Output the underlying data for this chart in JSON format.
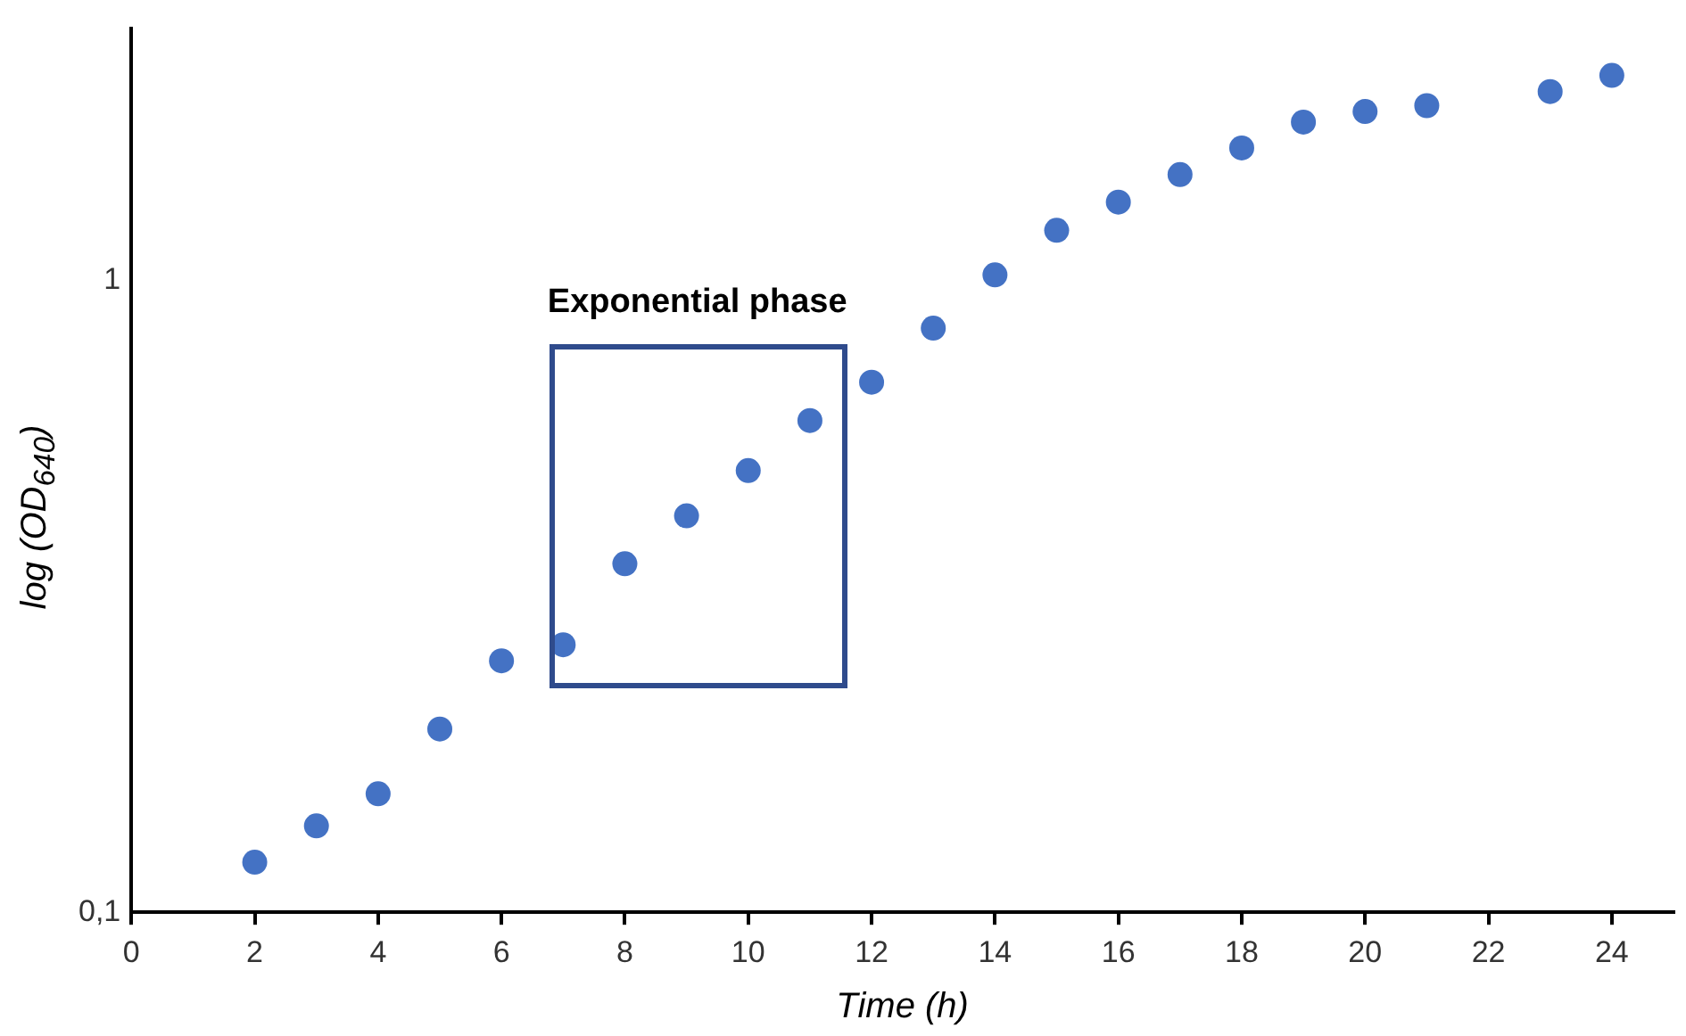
{
  "chart_data": {
    "type": "scatter",
    "xlabel": "Time (h)",
    "ylabel": "log (OD$_{640}$)",
    "log": "y",
    "grid": false,
    "legend": false,
    "marker": "circle",
    "x": [
      2,
      3,
      4,
      5,
      6,
      7,
      8,
      9,
      10,
      11,
      12,
      13,
      14,
      15,
      16,
      17,
      18,
      19,
      20,
      21,
      23,
      24
    ],
    "series": [
      {
        "color": "#4472c4",
        "values": [
          0.12,
          0.137,
          0.154,
          0.195,
          0.25,
          0.265,
          0.356,
          0.424,
          0.5,
          0.6,
          0.69,
          0.84,
          1.02,
          1.2,
          1.33,
          1.47,
          1.62,
          1.78,
          1.85,
          1.89,
          1.99,
          2.11
        ]
      }
    ],
    "xlim": [
      0,
      25
    ],
    "xticks": [
      0,
      2,
      4,
      6,
      8,
      10,
      12,
      14,
      16,
      18,
      20,
      22,
      24
    ],
    "ylim": [
      0.1,
      2.5
    ],
    "yticks": [
      {
        "value": 0.1,
        "label": "0,1"
      },
      1
    ],
    "annotations": [
      "Exponential phase"
    ]
  }
}
